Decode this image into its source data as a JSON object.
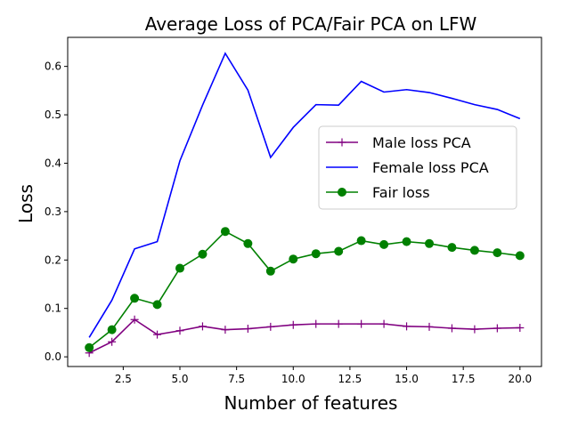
{
  "chart_data": {
    "type": "line",
    "title": "Average Loss of PCA/Fair PCA on LFW",
    "xlabel": "Number of features",
    "ylabel": "Loss",
    "xlim": [
      0.05,
      20.95
    ],
    "ylim": [
      -0.02,
      0.66
    ],
    "xticks": [
      2.5,
      5.0,
      7.5,
      10.0,
      12.5,
      15.0,
      17.5,
      20.0
    ],
    "xtick_labels": [
      "2.5",
      "5.0",
      "7.5",
      "10.0",
      "12.5",
      "15.0",
      "17.5",
      "20.0"
    ],
    "yticks": [
      0.0,
      0.1,
      0.2,
      0.3,
      0.4,
      0.5,
      0.6
    ],
    "ytick_labels": [
      "0.0",
      "0.1",
      "0.2",
      "0.3",
      "0.4",
      "0.5",
      "0.6"
    ],
    "grid": false,
    "legend_position": "center-right",
    "x": [
      1,
      2,
      3,
      4,
      5,
      6,
      7,
      8,
      9,
      10,
      11,
      12,
      13,
      14,
      15,
      16,
      17,
      18,
      19,
      20
    ],
    "series": [
      {
        "name": "Male loss PCA",
        "color": "#800080",
        "marker": "plus",
        "values": [
          0.008,
          0.031,
          0.077,
          0.046,
          0.054,
          0.063,
          0.056,
          0.058,
          0.062,
          0.066,
          0.068,
          0.068,
          0.068,
          0.068,
          0.063,
          0.062,
          0.059,
          0.057,
          0.059,
          0.06
        ]
      },
      {
        "name": "Female loss PCA",
        "color": "#0000ff",
        "marker": "none",
        "values": [
          0.04,
          0.117,
          0.223,
          0.238,
          0.405,
          0.52,
          0.627,
          0.551,
          0.412,
          0.474,
          0.521,
          0.52,
          0.569,
          0.547,
          0.552,
          0.546,
          0.534,
          0.521,
          0.511,
          0.492
        ]
      },
      {
        "name": "Fair loss",
        "color": "#008000",
        "marker": "circle",
        "values": [
          0.019,
          0.056,
          0.121,
          0.108,
          0.183,
          0.212,
          0.259,
          0.234,
          0.177,
          0.202,
          0.213,
          0.218,
          0.24,
          0.232,
          0.238,
          0.234,
          0.226,
          0.22,
          0.215,
          0.209
        ]
      }
    ]
  }
}
